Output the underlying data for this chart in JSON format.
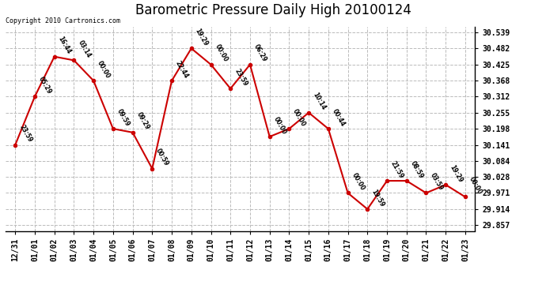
{
  "title": "Barometric Pressure Daily High 20100124",
  "copyright": "Copyright 2010 Cartronics.com",
  "x_labels": [
    "12/31",
    "01/01",
    "01/02",
    "01/03",
    "01/04",
    "01/05",
    "01/06",
    "01/07",
    "01/08",
    "01/09",
    "01/10",
    "01/11",
    "01/12",
    "01/13",
    "01/14",
    "01/15",
    "01/16",
    "01/17",
    "01/18",
    "01/19",
    "01/20",
    "01/21",
    "01/22",
    "01/23"
  ],
  "y_values": [
    30.141,
    30.312,
    30.453,
    30.44,
    30.368,
    30.198,
    30.185,
    30.057,
    30.368,
    30.482,
    30.425,
    30.34,
    30.425,
    30.17,
    30.198,
    30.255,
    30.198,
    29.971,
    29.914,
    30.014,
    30.014,
    29.971,
    30.0,
    29.957
  ],
  "time_labels": [
    "23:59",
    "05:29",
    "16:44",
    "03:14",
    "00:00",
    "09:59",
    "09:29",
    "00:59",
    "22:44",
    "19:29",
    "00:00",
    "23:59",
    "06:29",
    "00:00",
    "00:00",
    "10:14",
    "00:44",
    "00:00",
    "19:59",
    "21:59",
    "08:59",
    "03:59",
    "19:29",
    "00:00"
  ],
  "y_ticks": [
    29.857,
    29.914,
    29.971,
    30.028,
    30.084,
    30.141,
    30.198,
    30.255,
    30.312,
    30.368,
    30.425,
    30.482,
    30.539
  ],
  "line_color": "#cc0000",
  "marker_color": "#cc0000",
  "bg_color": "#ffffff",
  "grid_color": "#bbbbbb",
  "title_fontsize": 12,
  "tick_fontsize": 7,
  "annot_fontsize": 5.5
}
